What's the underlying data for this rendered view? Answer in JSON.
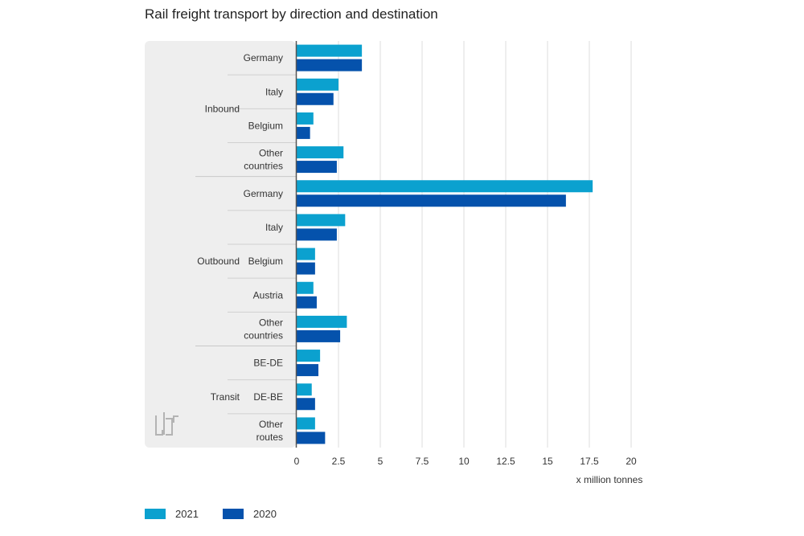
{
  "chart_data": {
    "type": "bar",
    "orientation": "horizontal",
    "title": "Rail freight transport by direction and destination",
    "xlabel": "x million tonnes",
    "xlim": [
      0,
      20
    ],
    "xticks": [
      "0",
      "2.5",
      "5",
      "7.5",
      "10",
      "12.5",
      "15",
      "17.5",
      "20"
    ],
    "grid": true,
    "legend_position": "bottom-left",
    "colors": {
      "2021": "#0ba1cf",
      "2020": "#0552ac"
    },
    "groups": [
      {
        "name": "Inbound",
        "categories": [
          "Germany",
          "Italy",
          "Belgium",
          "Other countries"
        ]
      },
      {
        "name": "Outbound",
        "categories": [
          "Germany",
          "Italy",
          "Belgium",
          "Austria",
          "Other countries"
        ]
      },
      {
        "name": "Transit",
        "categories": [
          "BE-DE",
          "DE-BE",
          "Other routes"
        ]
      }
    ],
    "series": [
      {
        "name": "2021",
        "values": [
          3.9,
          2.5,
          1.0,
          2.8,
          17.7,
          2.9,
          1.1,
          1.0,
          3.0,
          1.4,
          0.9,
          1.1
        ]
      },
      {
        "name": "2020",
        "values": [
          3.9,
          2.2,
          0.8,
          2.4,
          16.1,
          2.4,
          1.1,
          1.2,
          2.6,
          1.3,
          1.1,
          1.7
        ]
      }
    ]
  }
}
